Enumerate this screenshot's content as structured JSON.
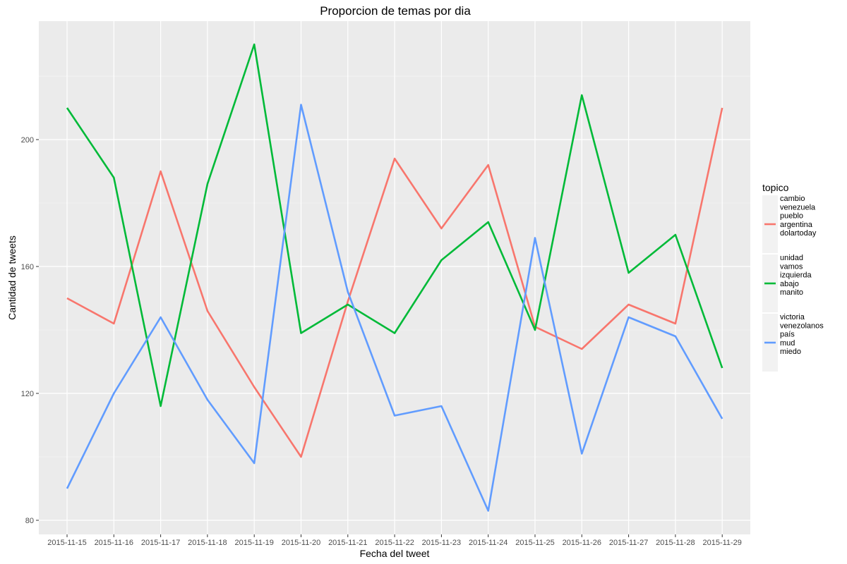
{
  "chart_data": {
    "type": "line",
    "title": "Proporcion de temas por dia",
    "xlabel": "Fecha del tweet",
    "ylabel": "Cantidad de tweets",
    "x": [
      "2015-11-15",
      "2015-11-16",
      "2015-11-17",
      "2015-11-18",
      "2015-11-19",
      "2015-11-20",
      "2015-11-21",
      "2015-11-22",
      "2015-11-23",
      "2015-11-24",
      "2015-11-25",
      "2015-11-26",
      "2015-11-27",
      "2015-11-28",
      "2015-11-29"
    ],
    "ylim": [
      75,
      235
    ],
    "yticks": [
      80,
      120,
      160,
      200
    ],
    "grid": true,
    "legend": {
      "title": "topico",
      "position": "right"
    },
    "series": [
      {
        "name": [
          "cambio",
          "venezuela",
          "pueblo",
          "argentina",
          "dolartoday"
        ],
        "color": "#F8766D",
        "values": [
          150,
          142,
          190,
          146,
          122,
          100,
          149,
          194,
          172,
          192,
          141,
          134,
          148,
          142,
          210
        ]
      },
      {
        "name": [
          "unidad",
          "vamos",
          "izquierda",
          "abajo",
          "manito"
        ],
        "color": "#00BA38",
        "values": [
          210,
          188,
          116,
          186,
          230,
          139,
          148,
          139,
          162,
          174,
          140,
          214,
          158,
          170,
          128
        ]
      },
      {
        "name": [
          "victoria",
          "venezolanos",
          "país",
          "mud",
          "miedo"
        ],
        "color": "#619CFF",
        "values": [
          90,
          120,
          144,
          118,
          98,
          211,
          152,
          113,
          116,
          83,
          169,
          101,
          144,
          138,
          112
        ]
      }
    ]
  }
}
